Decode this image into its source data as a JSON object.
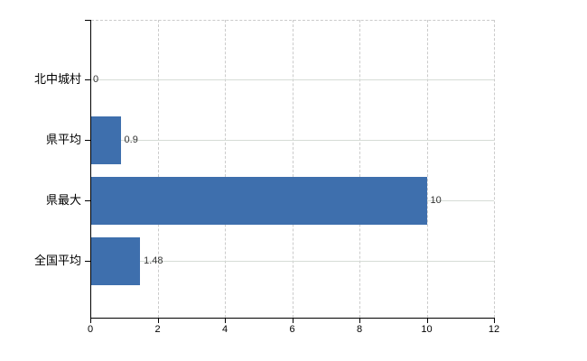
{
  "chart_data": {
    "type": "bar",
    "orientation": "horizontal",
    "title": "",
    "categories": [
      "北中城村",
      "県平均",
      "県最大",
      "全国平均"
    ],
    "values": [
      0,
      0.9,
      10,
      1.48
    ],
    "value_labels": [
      "0",
      "0.9",
      "10",
      "1.48"
    ],
    "x_axis": {
      "min": 0,
      "max": 12,
      "ticks": [
        0,
        2,
        4,
        6,
        8,
        10,
        12
      ],
      "tick_labels": [
        "0",
        "2",
        "4",
        "6",
        "8",
        "10",
        "12"
      ]
    },
    "grid": {
      "vertical_style": "dashed",
      "horizontal_style": "solid",
      "top_border": "dashed",
      "right_border": "dashed"
    },
    "colors": {
      "bar": "#3e6fad",
      "axis": "#000000",
      "grid_vertical": "#cbcbcb",
      "grid_horizontal": "#d6dcd6",
      "value_text": "#333333",
      "label_text": "#000000",
      "background": "#ffffff"
    },
    "legend": "none"
  }
}
